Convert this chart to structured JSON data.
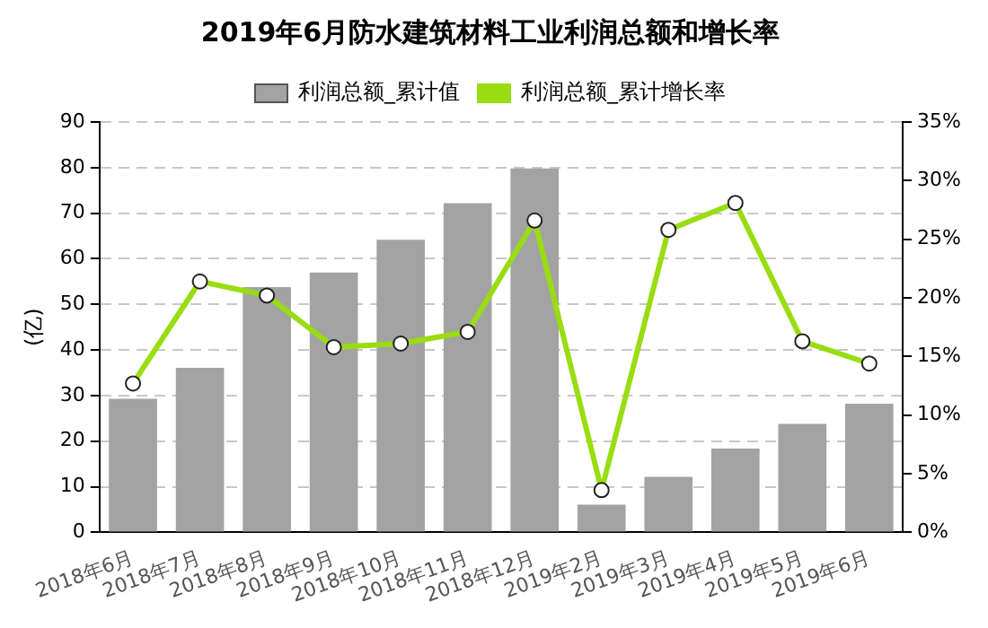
{
  "chart_data": {
    "type": "bar",
    "title": "2019年6月防水建筑材料工业利润总额和增长率",
    "ylabel": "(亿)",
    "categories": [
      "2018年6月",
      "2018年7月",
      "2018年8月",
      "2018年9月",
      "2018年10月",
      "2018年11月",
      "2018年12月",
      "2019年2月",
      "2019年3月",
      "2019年4月",
      "2019年5月",
      "2019年6月"
    ],
    "series": [
      {
        "name": "利润总额_累计值",
        "color": "#a3a3a3",
        "values": [
          29.3,
          36.1,
          53.8,
          57,
          64.2,
          72.2,
          79.8,
          6.1,
          12.2,
          18.4,
          23.8,
          28.2
        ]
      },
      {
        "name": "利润总额_累计增长率",
        "type": "line",
        "axis": "y2",
        "color": "#99dd11",
        "marker": "circle",
        "values": [
          12.7,
          21.4,
          20.2,
          15.8,
          16.1,
          17.1,
          26.6,
          3.6,
          25.8,
          28.1,
          16.3,
          14.4
        ]
      }
    ],
    "ylim": [
      0,
      90
    ],
    "yticks": [
      0,
      10,
      20,
      30,
      40,
      50,
      60,
      70,
      80,
      90
    ],
    "y2lim": [
      0,
      35
    ],
    "y2ticks": [
      {
        "value": 0,
        "label": "0%"
      },
      {
        "value": 5,
        "label": "5%"
      },
      {
        "value": 10,
        "label": "10%"
      },
      {
        "value": 15,
        "label": "15%"
      },
      {
        "value": 20,
        "label": "20%"
      },
      {
        "value": 25,
        "label": "25%"
      },
      {
        "value": 30,
        "label": "30%"
      },
      {
        "value": 35,
        "label": "35%"
      }
    ],
    "grid": "y",
    "legend": "top"
  }
}
